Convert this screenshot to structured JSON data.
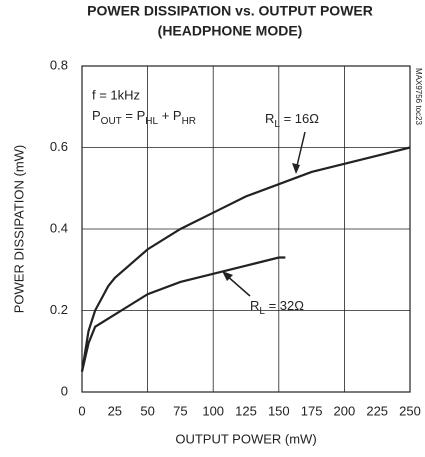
{
  "chart_data": {
    "type": "line",
    "title": [
      "POWER DISSIPATION vs. OUTPUT POWER",
      "(HEADPHONE MODE)"
    ],
    "xlabel": "OUTPUT POWER (mW)",
    "ylabel": "POWER DISSIPATION (mW)",
    "xlim": [
      0,
      250
    ],
    "xticks": [
      0,
      25,
      50,
      75,
      100,
      125,
      150,
      175,
      200,
      225,
      250
    ],
    "ylim": [
      0,
      0.8
    ],
    "yticks": [
      0,
      0.2,
      0.4,
      0.6,
      0.8
    ],
    "grid": true,
    "series": [
      {
        "name": [
          "R",
          "L",
          " = 16Ω"
        ],
        "color": "#222222",
        "x": [
          0,
          5,
          10,
          20,
          25,
          50,
          75,
          100,
          125,
          150,
          175,
          200,
          225,
          250
        ],
        "values": [
          0.05,
          0.15,
          0.2,
          0.26,
          0.28,
          0.35,
          0.4,
          0.44,
          0.48,
          0.51,
          0.54,
          0.56,
          0.58,
          0.6
        ]
      },
      {
        "name": [
          "R",
          "L",
          " = 32Ω"
        ],
        "color": "#222222",
        "x": [
          0,
          5,
          10,
          25,
          50,
          75,
          100,
          125,
          150,
          155
        ],
        "values": [
          0.05,
          0.12,
          0.16,
          0.19,
          0.24,
          0.27,
          0.29,
          0.31,
          0.33,
          0.33
        ]
      }
    ],
    "annotations": [
      "f = 1kHz",
      [
        "P",
        "OUT",
        " = P",
        "HL",
        " + P",
        "HR"
      ]
    ],
    "watermark": "MAX9756 toc23"
  }
}
